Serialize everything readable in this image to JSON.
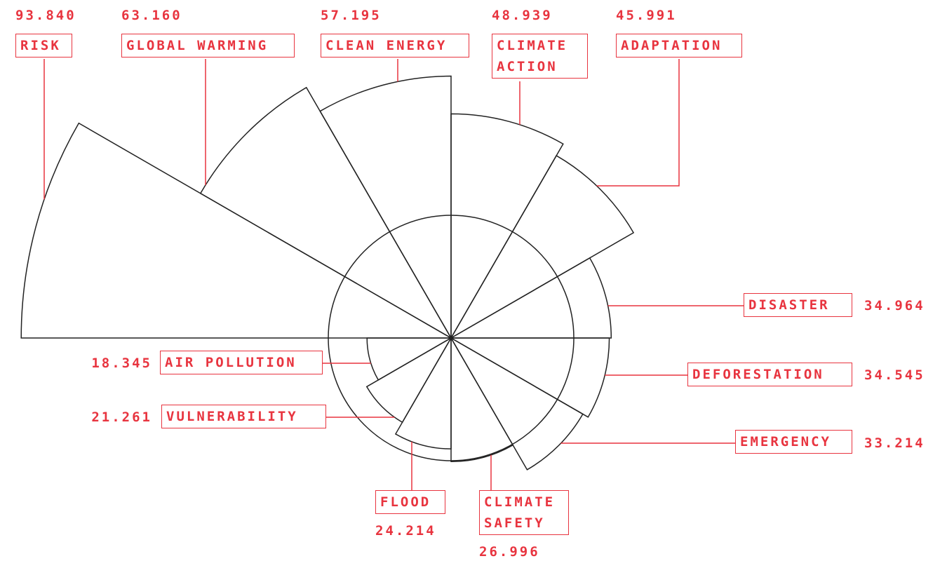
{
  "chart_data": {
    "type": "rose",
    "categories": [
      "RISK",
      "GLOBAL WARMING",
      "CLEAN ENERGY",
      "CLIMATE ACTION",
      "ADAPTATION",
      "DISASTER",
      "DEFORESTATION",
      "EMERGENCY",
      "CLIMATE SAFETY",
      "FLOOD",
      "VULNERABILITY",
      "AIR POLLUTION"
    ],
    "values": [
      93.84,
      63.16,
      57.195,
      48.939,
      45.991,
      34.964,
      34.545,
      33.214,
      26.996,
      24.214,
      21.261,
      18.345
    ],
    "value_labels": [
      "93.840",
      "63.160",
      "57.195",
      "48.939",
      "45.991",
      "34.964",
      "34.545",
      "33.214",
      "26.996",
      "24.214",
      "21.261",
      "18.345"
    ],
    "color": "#e8343f"
  }
}
